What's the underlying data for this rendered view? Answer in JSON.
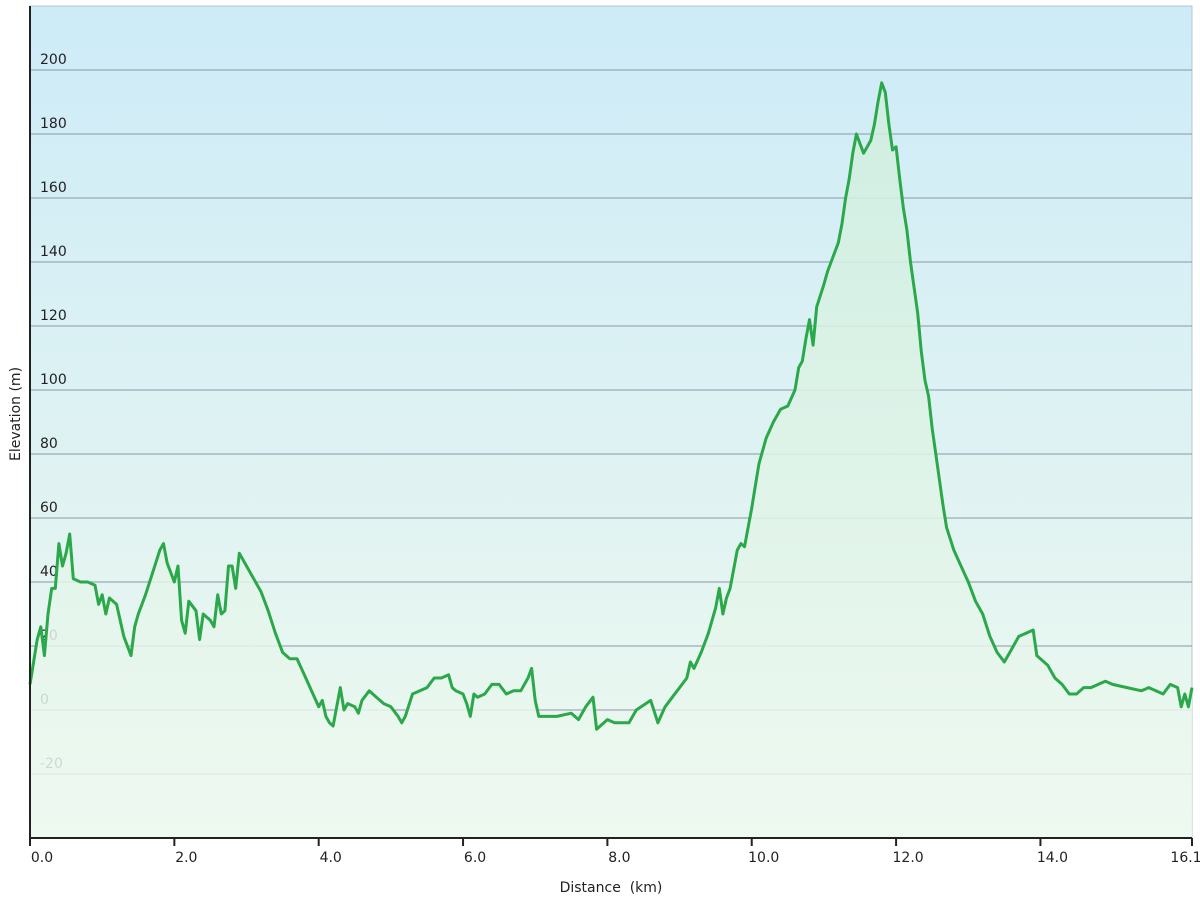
{
  "chart_data": {
    "type": "area",
    "xlabel": "Distance  (km)",
    "ylabel": "Elevation (m)",
    "xlim": [
      0.0,
      16.1
    ],
    "ylim": [
      -40,
      220
    ],
    "x_ticks": [
      "0.0",
      "2.0",
      "4.0",
      "6.0",
      "8.0",
      "10.0",
      "12.0",
      "14.0",
      "16.1"
    ],
    "x_tick_values": [
      0,
      2,
      4,
      6,
      8,
      10,
      12,
      14,
      16.1
    ],
    "y_ticks": [
      "200",
      "180",
      "160",
      "140",
      "120",
      "100",
      "80",
      "60",
      "40",
      "20",
      "0",
      "-20"
    ],
    "y_tick_values": [
      200,
      180,
      160,
      140,
      120,
      100,
      80,
      60,
      40,
      20,
      0,
      -20
    ],
    "grid": true,
    "colors": {
      "line": "#2aa84a",
      "bg_top": "#cdebf8",
      "bg_bottom": "#eef9ee",
      "fill_top": "#cfeedd",
      "fill_bottom": "#eef9f1",
      "grid": "#8a98a8"
    },
    "series": [
      {
        "points": [
          [
            0.0,
            8
          ],
          [
            0.05,
            15
          ],
          [
            0.1,
            22
          ],
          [
            0.15,
            26
          ],
          [
            0.2,
            17
          ],
          [
            0.25,
            30
          ],
          [
            0.3,
            38
          ],
          [
            0.35,
            38
          ],
          [
            0.4,
            52
          ],
          [
            0.45,
            45
          ],
          [
            0.5,
            49
          ],
          [
            0.55,
            55
          ],
          [
            0.6,
            41
          ],
          [
            0.7,
            40
          ],
          [
            0.8,
            40
          ],
          [
            0.9,
            39
          ],
          [
            0.95,
            33
          ],
          [
            1.0,
            36
          ],
          [
            1.05,
            30
          ],
          [
            1.1,
            35
          ],
          [
            1.2,
            33
          ],
          [
            1.3,
            23
          ],
          [
            1.35,
            20
          ],
          [
            1.4,
            17
          ],
          [
            1.45,
            26
          ],
          [
            1.5,
            30
          ],
          [
            1.6,
            36
          ],
          [
            1.7,
            43
          ],
          [
            1.8,
            50
          ],
          [
            1.85,
            52
          ],
          [
            1.9,
            46
          ],
          [
            1.95,
            43
          ],
          [
            2.0,
            40
          ],
          [
            2.05,
            45
          ],
          [
            2.1,
            28
          ],
          [
            2.15,
            24
          ],
          [
            2.2,
            34
          ],
          [
            2.3,
            31
          ],
          [
            2.35,
            22
          ],
          [
            2.4,
            30
          ],
          [
            2.5,
            28
          ],
          [
            2.55,
            26
          ],
          [
            2.6,
            36
          ],
          [
            2.65,
            30
          ],
          [
            2.7,
            31
          ],
          [
            2.75,
            45
          ],
          [
            2.8,
            45
          ],
          [
            2.85,
            38
          ],
          [
            2.9,
            49
          ],
          [
            3.0,
            45
          ],
          [
            3.1,
            41
          ],
          [
            3.2,
            37
          ],
          [
            3.3,
            31
          ],
          [
            3.4,
            24
          ],
          [
            3.5,
            18
          ],
          [
            3.6,
            16
          ],
          [
            3.7,
            16
          ],
          [
            3.8,
            11
          ],
          [
            3.9,
            6
          ],
          [
            4.0,
            1
          ],
          [
            4.05,
            3
          ],
          [
            4.1,
            -2
          ],
          [
            4.15,
            -4
          ],
          [
            4.2,
            -5
          ],
          [
            4.25,
            1
          ],
          [
            4.3,
            7
          ],
          [
            4.35,
            0
          ],
          [
            4.4,
            2
          ],
          [
            4.5,
            1
          ],
          [
            4.55,
            -1
          ],
          [
            4.6,
            3
          ],
          [
            4.7,
            6
          ],
          [
            4.8,
            4
          ],
          [
            4.9,
            2
          ],
          [
            5.0,
            1
          ],
          [
            5.1,
            -2
          ],
          [
            5.15,
            -4
          ],
          [
            5.2,
            -2
          ],
          [
            5.3,
            5
          ],
          [
            5.5,
            7
          ],
          [
            5.6,
            10
          ],
          [
            5.7,
            10
          ],
          [
            5.8,
            11
          ],
          [
            5.85,
            7
          ],
          [
            5.9,
            6
          ],
          [
            6.0,
            5
          ],
          [
            6.05,
            2
          ],
          [
            6.1,
            -2
          ],
          [
            6.15,
            5
          ],
          [
            6.2,
            4
          ],
          [
            6.3,
            5
          ],
          [
            6.4,
            8
          ],
          [
            6.5,
            8
          ],
          [
            6.6,
            5
          ],
          [
            6.7,
            6
          ],
          [
            6.8,
            6
          ],
          [
            6.9,
            10
          ],
          [
            6.95,
            13
          ],
          [
            7.0,
            3
          ],
          [
            7.05,
            -2
          ],
          [
            7.2,
            -2
          ],
          [
            7.3,
            -2
          ],
          [
            7.5,
            -1
          ],
          [
            7.6,
            -3
          ],
          [
            7.7,
            1
          ],
          [
            7.8,
            4
          ],
          [
            7.85,
            -6
          ],
          [
            8.0,
            -3
          ],
          [
            8.1,
            -4
          ],
          [
            8.3,
            -4
          ],
          [
            8.4,
            0
          ],
          [
            8.6,
            3
          ],
          [
            8.7,
            -4
          ],
          [
            8.8,
            1
          ],
          [
            8.9,
            4
          ],
          [
            9.0,
            7
          ],
          [
            9.1,
            10
          ],
          [
            9.15,
            15
          ],
          [
            9.2,
            13
          ],
          [
            9.3,
            18
          ],
          [
            9.4,
            24
          ],
          [
            9.5,
            32
          ],
          [
            9.55,
            38
          ],
          [
            9.6,
            30
          ],
          [
            9.65,
            35
          ],
          [
            9.7,
            38
          ],
          [
            9.8,
            50
          ],
          [
            9.85,
            52
          ],
          [
            9.9,
            51
          ],
          [
            10.0,
            63
          ],
          [
            10.05,
            70
          ],
          [
            10.1,
            77
          ],
          [
            10.2,
            85
          ],
          [
            10.3,
            90
          ],
          [
            10.4,
            94
          ],
          [
            10.5,
            95
          ],
          [
            10.6,
            100
          ],
          [
            10.65,
            107
          ],
          [
            10.7,
            109
          ],
          [
            10.75,
            116
          ],
          [
            10.8,
            122
          ],
          [
            10.85,
            114
          ],
          [
            10.9,
            126
          ],
          [
            11.0,
            133
          ],
          [
            11.05,
            137
          ],
          [
            11.1,
            140
          ],
          [
            11.2,
            146
          ],
          [
            11.25,
            152
          ],
          [
            11.3,
            160
          ],
          [
            11.35,
            166
          ],
          [
            11.4,
            174
          ],
          [
            11.45,
            180
          ],
          [
            11.5,
            177
          ],
          [
            11.55,
            174
          ],
          [
            11.6,
            176
          ],
          [
            11.65,
            178
          ],
          [
            11.7,
            183
          ],
          [
            11.75,
            190
          ],
          [
            11.8,
            196
          ],
          [
            11.85,
            193
          ],
          [
            11.9,
            183
          ],
          [
            11.95,
            175
          ],
          [
            12.0,
            176
          ],
          [
            12.05,
            166
          ],
          [
            12.1,
            157
          ],
          [
            12.15,
            150
          ],
          [
            12.2,
            140
          ],
          [
            12.25,
            132
          ],
          [
            12.3,
            124
          ],
          [
            12.35,
            112
          ],
          [
            12.4,
            103
          ],
          [
            12.45,
            98
          ],
          [
            12.5,
            88
          ],
          [
            12.55,
            80
          ],
          [
            12.6,
            72
          ],
          [
            12.65,
            64
          ],
          [
            12.7,
            57
          ],
          [
            12.8,
            50
          ],
          [
            12.9,
            45
          ],
          [
            13.0,
            40
          ],
          [
            13.1,
            34
          ],
          [
            13.2,
            30
          ],
          [
            13.3,
            23
          ],
          [
            13.4,
            18
          ],
          [
            13.5,
            15
          ],
          [
            13.6,
            19
          ],
          [
            13.7,
            23
          ],
          [
            13.8,
            24
          ],
          [
            13.9,
            25
          ],
          [
            13.95,
            17
          ],
          [
            14.0,
            16
          ],
          [
            14.1,
            14
          ],
          [
            14.2,
            10
          ],
          [
            14.3,
            8
          ],
          [
            14.4,
            5
          ],
          [
            14.5,
            5
          ],
          [
            14.6,
            7
          ],
          [
            14.7,
            7
          ],
          [
            14.8,
            8
          ],
          [
            14.9,
            9
          ],
          [
            15.0,
            8
          ],
          [
            15.2,
            7
          ],
          [
            15.4,
            6
          ],
          [
            15.5,
            7
          ],
          [
            15.6,
            6
          ],
          [
            15.7,
            5
          ],
          [
            15.8,
            8
          ],
          [
            15.9,
            7
          ],
          [
            15.95,
            1
          ],
          [
            16.0,
            5
          ],
          [
            16.05,
            1
          ],
          [
            16.1,
            7
          ]
        ]
      }
    ]
  }
}
